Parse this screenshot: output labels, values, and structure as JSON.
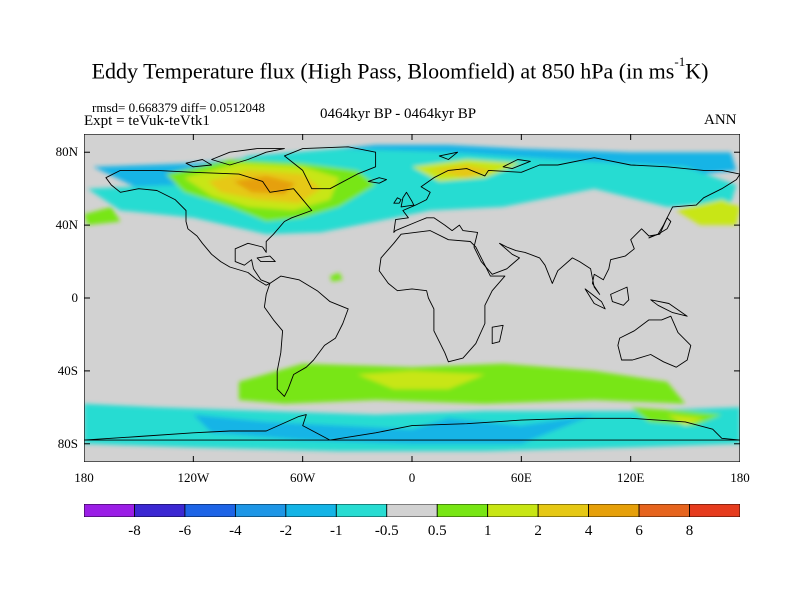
{
  "title": {
    "main": "Eddy Temperature flux (High Pass, Bloomfield) at 850 hPa (in ms",
    "sup": "-1",
    "tail": "K)"
  },
  "stats_line": "rmsd= 0.668379 diff= 0.0512048",
  "experiment": "Expt = teVuk-teVtk1",
  "period": "0464kyr BP - 0464kyr BP",
  "season": "ANN",
  "lat_labels": [
    "80N",
    "40N",
    "0",
    "40S",
    "80S"
  ],
  "lon_labels": [
    "180",
    "120W",
    "60W",
    "0",
    "60E",
    "120E",
    "180"
  ],
  "colorbar": {
    "labels": [
      "-8",
      "-6",
      "-4",
      "-2",
      "-1",
      "-0.5",
      "0.5",
      "1",
      "2",
      "4",
      "6",
      "8"
    ],
    "colors": [
      "#9b1ee6",
      "#3c28d2",
      "#1e64e6",
      "#1e96e6",
      "#14b4e6",
      "#28dcd2",
      "#d2d2d2",
      "#78e614",
      "#c8e614",
      "#e6c814",
      "#e6a00a",
      "#e6641e",
      "#e63c1e"
    ]
  },
  "palette": {
    "background": "#d2d2d2",
    "neg_small": "#28dcd2",
    "neg_med": "#14b4e6",
    "pos_small": "#78e614",
    "pos_med": "#c8e614",
    "pos_large": "#e6c814",
    "pos_xl": "#e6a00a"
  }
}
